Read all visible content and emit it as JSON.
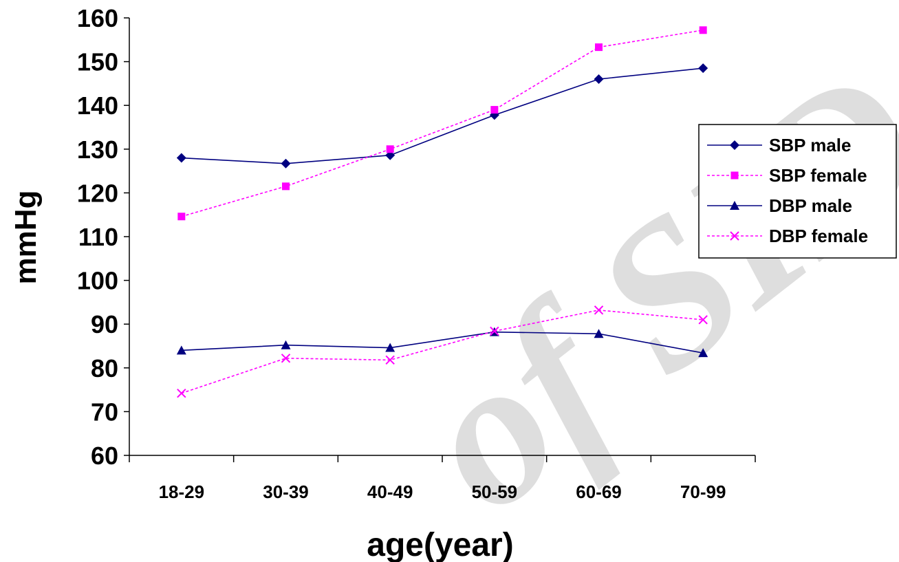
{
  "chart_data": {
    "type": "line",
    "title": "",
    "xlabel": "age(year)",
    "ylabel": "mmHg",
    "categories": [
      "18-29",
      "30-39",
      "40-49",
      "50-59",
      "60-69",
      "70-99"
    ],
    "ylim": [
      60,
      160
    ],
    "yticks": [
      60,
      70,
      80,
      90,
      100,
      110,
      120,
      130,
      140,
      150,
      160
    ],
    "grid": false,
    "legend_position": "right",
    "series": [
      {
        "name": "SBP male",
        "values": [
          128,
          126.7,
          128.6,
          137.8,
          146,
          148.5
        ],
        "color": "#000080",
        "line_style": "solid",
        "marker": "diamond"
      },
      {
        "name": "SBP female",
        "values": [
          114.6,
          121.5,
          130,
          139,
          153.3,
          157.2
        ],
        "color": "#ff00ff",
        "line_style": "dotted",
        "marker": "square"
      },
      {
        "name": "DBP male",
        "values": [
          84,
          85.2,
          84.6,
          88.2,
          87.8,
          83.4
        ],
        "color": "#000080",
        "line_style": "solid",
        "marker": "triangle"
      },
      {
        "name": "DBP female",
        "values": [
          74.2,
          82.2,
          81.8,
          88.4,
          93.2,
          91
        ],
        "color": "#ff00ff",
        "line_style": "dotted",
        "marker": "x"
      }
    ]
  }
}
